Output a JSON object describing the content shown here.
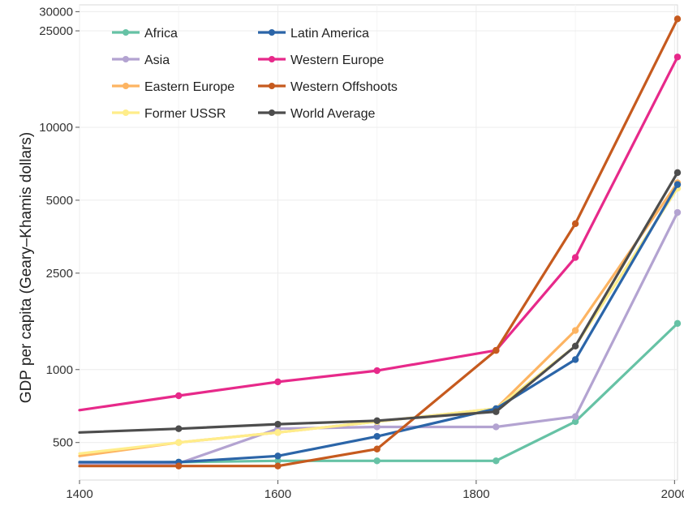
{
  "chart_data": {
    "type": "line",
    "title": "",
    "xlabel": "",
    "ylabel": "GDP per capita (Geary–Khamis dollars)",
    "y_scale": "log",
    "xlim": [
      1400,
      2003
    ],
    "ylim": [
      350,
      32000
    ],
    "x_ticks": [
      1400,
      1600,
      1800,
      2000
    ],
    "x_tick_labels": [
      "1400",
      "1600",
      "1800",
      "2000"
    ],
    "y_ticks": [
      500,
      1000,
      2500,
      5000,
      10000,
      25000,
      30000
    ],
    "y_tick_labels": [
      "500",
      "1000",
      "2500",
      "5000",
      "10000",
      "25000",
      "30000"
    ],
    "grid": true,
    "legend_position": "top-left",
    "x": [
      1500,
      1600,
      1700,
      1820,
      1900,
      2003
    ],
    "series": [
      {
        "name": "Africa",
        "color": "#66c2a5",
        "x_start": 1400,
        "start_value": 410,
        "values": [
          415,
          420,
          420,
          420,
          610,
          1550
        ]
      },
      {
        "name": "Asia",
        "color": "#b3a3d1",
        "x_start": 1400,
        "start_value": 410,
        "values": [
          410,
          570,
          580,
          580,
          640,
          4450
        ]
      },
      {
        "name": "Eastern Europe",
        "color": "#fdb462",
        "x_start": 1400,
        "start_value": 440,
        "values": [
          500,
          550,
          610,
          690,
          1450,
          5900
        ]
      },
      {
        "name": "Former USSR",
        "color": "#ffed8a",
        "x_start": 1400,
        "start_value": 450,
        "values": [
          500,
          550,
          610,
          690,
          1250,
          5600
        ]
      },
      {
        "name": "Latin America",
        "color": "#2b65a8",
        "x_start": 1400,
        "start_value": 415,
        "values": [
          415,
          440,
          530,
          690,
          1100,
          5800
        ]
      },
      {
        "name": "Western Europe",
        "color": "#e7298a",
        "x_start": 1400,
        "start_value": 680,
        "values": [
          780,
          890,
          990,
          1200,
          2900,
          19500
        ]
      },
      {
        "name": "Western Offshoots",
        "color": "#c65a1e",
        "x_start": 1400,
        "start_value": 400,
        "values": [
          400,
          400,
          470,
          1200,
          4000,
          28000
        ]
      },
      {
        "name": "World Average",
        "color": "#4d4d4d",
        "x_start": 1400,
        "start_value": 550,
        "values": [
          570,
          595,
          615,
          670,
          1250,
          6500
        ]
      }
    ]
  }
}
